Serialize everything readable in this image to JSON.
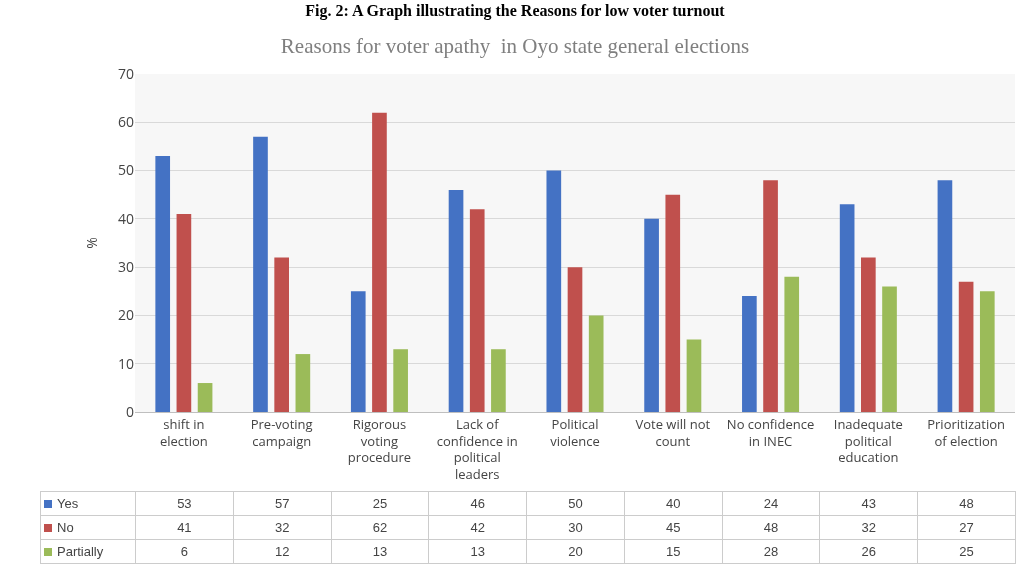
{
  "chart_data": {
    "type": "bar",
    "title": "Reasons for voter apathy  in Oyo state general elections",
    "ylabel": "%",
    "annotations": [
      "Fig. 2: A Graph illustrating the Reasons for low voter turnout"
    ],
    "categories": [
      "shift in election",
      "Pre-voting campaign",
      "Rigorous voting procedure",
      "Lack of confidence in political leaders",
      "Political violence",
      "Vote will not count",
      "No confidence in INEC",
      "Inadequate political education",
      "Prioritization of election"
    ],
    "series": [
      {
        "name": "Yes",
        "color": "#4472c4",
        "values": [
          53,
          57,
          25,
          46,
          50,
          40,
          24,
          43,
          48
        ]
      },
      {
        "name": "No",
        "color": "#c0504d",
        "values": [
          41,
          32,
          62,
          42,
          30,
          45,
          48,
          32,
          27
        ]
      },
      {
        "name": "Partially",
        "color": "#9bbb59",
        "values": [
          6,
          12,
          13,
          13,
          20,
          15,
          28,
          26,
          25
        ]
      }
    ],
    "ylim": [
      0,
      70
    ],
    "yticks": [
      0,
      10,
      20,
      30,
      40,
      50,
      60,
      70
    ],
    "grid": "y",
    "legend": "bottom",
    "data_labels": true
  }
}
